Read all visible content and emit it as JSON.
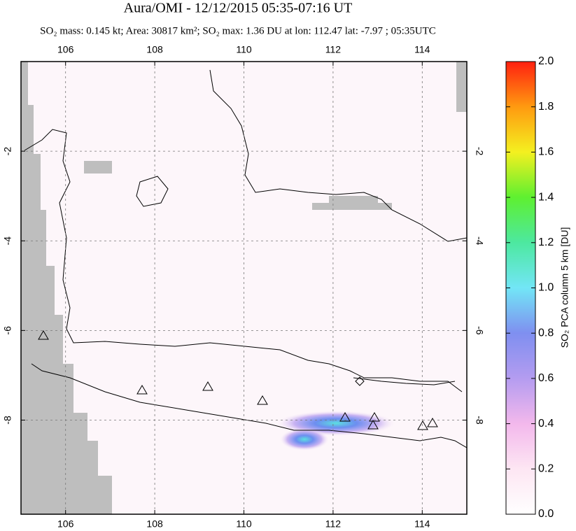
{
  "chart_data": {
    "type": "map",
    "title": "Aura/OMI - 12/12/2015 05:35-07:16 UT",
    "subtitle": "SO₂ mass: 0.145 kt; Area: 30817 km²; SO₂ max: 1.36 DU at lon: 112.47 lat: -7.97 ; 05:35UTC",
    "xlim": [
      105,
      115
    ],
    "xticks": [
      106,
      108,
      110,
      112,
      114
    ],
    "ylim": [
      -10.1,
      0
    ],
    "yticks": [
      -2,
      -4,
      -6,
      -8
    ],
    "colorbar": {
      "label": "SO₂ PCA column 5 km [DU]",
      "lim": [
        0,
        2
      ],
      "ticks": [
        {
          "value": 0,
          "label": "0.0"
        },
        0.2,
        0.4,
        0.6,
        0.8,
        {
          "value": 1,
          "label": "1.0"
        },
        1.2,
        1.4,
        1.6,
        1.8,
        {
          "value": 2,
          "label": "2.0"
        }
      ]
    },
    "grid": true
  }
}
